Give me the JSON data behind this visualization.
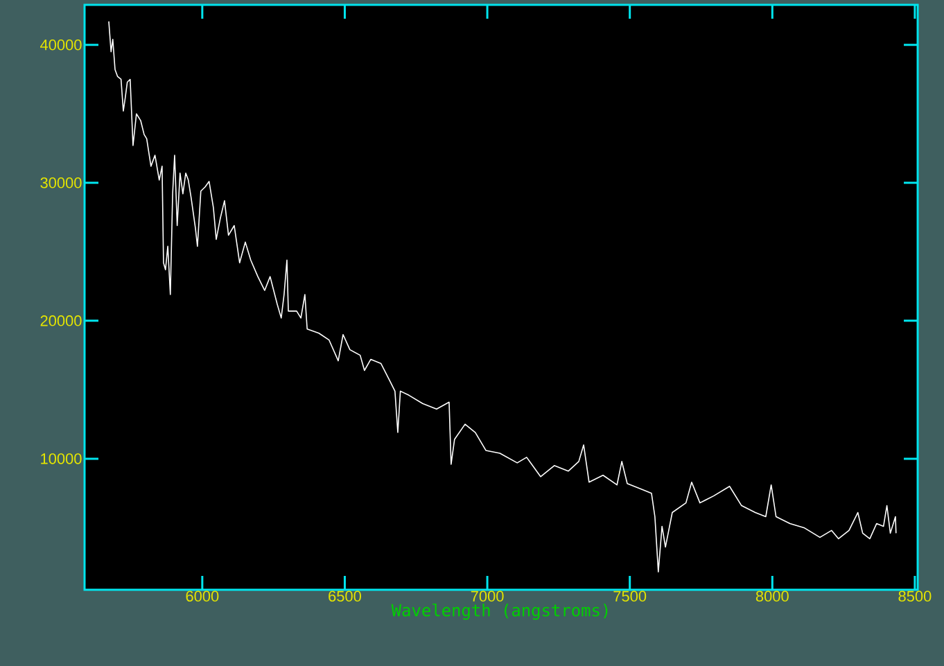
{
  "chart_data": {
    "type": "line",
    "xlabel": "Wavelength (angstroms)",
    "color": "#ffffff",
    "xlim": [
      5587,
      8510
    ],
    "ylim": [
      500,
      42900
    ],
    "xticks": [
      6000,
      6500,
      7000,
      7500,
      8000,
      8500
    ],
    "yticks": [
      10000,
      20000,
      30000,
      40000
    ],
    "x": [
      5672,
      5680,
      5686,
      5694,
      5703,
      5715,
      5723,
      5730,
      5737,
      5747,
      5757,
      5769,
      5784,
      5796,
      5805,
      5820,
      5834,
      5849,
      5859,
      5864,
      5871,
      5879,
      5888,
      5896,
      5903,
      5912,
      5922,
      5932,
      5942,
      5951,
      5961,
      5976,
      5983,
      5995,
      6010,
      6024,
      6039,
      6049,
      6063,
      6078,
      6092,
      6112,
      6131,
      6151,
      6170,
      6195,
      6219,
      6238,
      6263,
      6277,
      6287,
      6297,
      6302,
      6331,
      6346,
      6360,
      6368,
      6409,
      6445,
      6477,
      6494,
      6518,
      6554,
      6569,
      6591,
      6627,
      6659,
      6676,
      6686,
      6695,
      6725,
      6773,
      6822,
      6866,
      6873,
      6885,
      6922,
      6958,
      6995,
      7044,
      7105,
      7138,
      7187,
      7235,
      7284,
      7321,
      7338,
      7357,
      7406,
      7455,
      7472,
      7491,
      7540,
      7576,
      7588,
      7600,
      7613,
      7625,
      7649,
      7697,
      7717,
      7746,
      7794,
      7850,
      7892,
      7940,
      7977,
      7996,
      8013,
      8062,
      8111,
      8167,
      8208,
      8232,
      8269,
      8300,
      8317,
      8342,
      8366,
      8390,
      8402,
      8414,
      8432,
      8434
    ],
    "values": [
      41700,
      39500,
      40400,
      38200,
      37700,
      37500,
      35200,
      36200,
      37300,
      37500,
      32700,
      35000,
      34500,
      33500,
      33200,
      31200,
      32000,
      30200,
      31200,
      24200,
      23700,
      25400,
      21900,
      29200,
      32000,
      26900,
      30700,
      29200,
      30700,
      30200,
      28900,
      26700,
      25400,
      29400,
      29700,
      30100,
      28200,
      25900,
      27400,
      28700,
      26200,
      26900,
      24200,
      25700,
      24400,
      23200,
      22200,
      23200,
      21200,
      20200,
      21900,
      24400,
      20700,
      20700,
      20200,
      21900,
      19400,
      19100,
      18600,
      17100,
      19000,
      17900,
      17500,
      16400,
      17200,
      16900,
      15600,
      14900,
      11900,
      14900,
      14600,
      14000,
      13600,
      14100,
      9600,
      11400,
      12500,
      11900,
      10600,
      10400,
      9700,
      10100,
      8700,
      9500,
      9100,
      9800,
      11000,
      8300,
      8800,
      8100,
      9800,
      8200,
      7800,
      7500,
      5800,
      1800,
      5100,
      3600,
      6100,
      6800,
      8300,
      6800,
      7300,
      8000,
      6600,
      6100,
      5800,
      8100,
      5800,
      5300,
      5000,
      4300,
      4800,
      4200,
      4800,
      6100,
      4600,
      4200,
      5300,
      5100,
      6600,
      4600,
      5800,
      4600
    ]
  }
}
